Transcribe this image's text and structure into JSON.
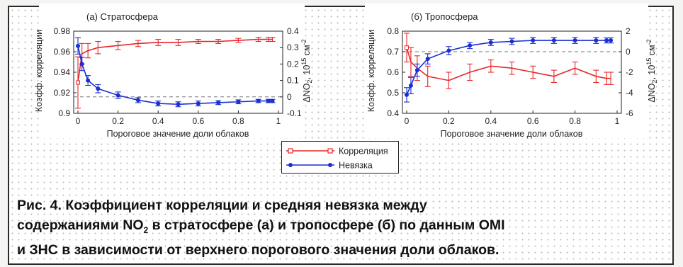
{
  "chart_data": [
    {
      "id": "a",
      "type": "line",
      "title": "(а) Стратосфера",
      "xlabel": "Пороговое значение доли облаков",
      "ylabel_left": "Коэфф. корреляции",
      "ylabel_right": "ΔNO",
      "ylabel_right_sub": "2",
      "ylabel_right_unit": ", 10",
      "ylabel_right_exp": "15",
      "ylabel_right_tail": " см",
      "ylabel_right_tail_exp": "-2",
      "xlim": [
        0,
        1
      ],
      "ylim_left": [
        0.9,
        0.98
      ],
      "ylim_right": [
        -0.1,
        0.4
      ],
      "x_ticks": [
        "0",
        "0.2",
        "0.4",
        "0.6",
        "0.8",
        "1"
      ],
      "y_left_ticks": [
        "0.9",
        "0.92",
        "0.94",
        "0.96",
        "0.98"
      ],
      "y_right_ticks": [
        "-0.1",
        "0",
        "0.1",
        "0.2",
        "0.3",
        "0.4"
      ],
      "reference_line_right": 0,
      "series": [
        {
          "name": "Корреляция",
          "axis": "left",
          "color": "#e8262b",
          "marker": "square-open",
          "x": [
            0,
            0.02,
            0.05,
            0.1,
            0.2,
            0.3,
            0.4,
            0.5,
            0.6,
            0.7,
            0.8,
            0.9,
            0.95,
            0.97
          ],
          "y": [
            0.93,
            0.958,
            0.961,
            0.964,
            0.966,
            0.968,
            0.969,
            0.969,
            0.97,
            0.97,
            0.971,
            0.972,
            0.972,
            0.972
          ],
          "err": [
            0.025,
            0.01,
            0.007,
            0.006,
            0.004,
            0.003,
            0.003,
            0.003,
            0.002,
            0.002,
            0.002,
            0.002,
            0.002,
            0.002
          ]
        },
        {
          "name": "Невязка",
          "axis": "right",
          "color": "#1b2fd0",
          "marker": "circle-filled",
          "x": [
            0,
            0.02,
            0.05,
            0.1,
            0.2,
            0.3,
            0.4,
            0.5,
            0.6,
            0.7,
            0.8,
            0.9,
            0.95,
            0.97
          ],
          "y": [
            0.31,
            0.2,
            0.1,
            0.05,
            0.01,
            -0.02,
            -0.04,
            -0.045,
            -0.04,
            -0.035,
            -0.03,
            -0.025,
            -0.025,
            -0.025
          ],
          "err": [
            0.05,
            0.04,
            0.03,
            0.025,
            0.02,
            0.015,
            0.015,
            0.015,
            0.015,
            0.012,
            0.012,
            0.01,
            0.01,
            0.01
          ]
        }
      ]
    },
    {
      "id": "b",
      "type": "line",
      "title": "(б) Тропосфера",
      "xlabel": "Пороговое значение доли облаков",
      "ylabel_left": "Коэфф. корреляции",
      "ylabel_right": "ΔNO",
      "ylabel_right_sub": "2",
      "ylabel_right_unit": ", 10",
      "ylabel_right_exp": "15",
      "ylabel_right_tail": " см",
      "ylabel_right_tail_exp": "-2",
      "xlim": [
        0,
        1
      ],
      "ylim_left": [
        0.4,
        0.8
      ],
      "ylim_right": [
        -6,
        2
      ],
      "x_ticks": [
        "0",
        "0.2",
        "0.4",
        "0.6",
        "0.8",
        "1"
      ],
      "y_left_ticks": [
        "0.4",
        "0.5",
        "0.6",
        "0.7",
        "0.8"
      ],
      "y_right_ticks": [
        "-6",
        "-4",
        "-2",
        "0",
        "2"
      ],
      "reference_line_right": 0,
      "series": [
        {
          "name": "Корреляция",
          "axis": "left",
          "color": "#e8262b",
          "marker": "square-open",
          "x": [
            0,
            0.02,
            0.05,
            0.1,
            0.2,
            0.3,
            0.4,
            0.5,
            0.6,
            0.7,
            0.8,
            0.9,
            0.95,
            0.97
          ],
          "y": [
            0.72,
            0.65,
            0.62,
            0.58,
            0.56,
            0.6,
            0.63,
            0.62,
            0.6,
            0.58,
            0.62,
            0.58,
            0.57,
            0.57
          ],
          "err": [
            0.07,
            0.07,
            0.06,
            0.05,
            0.04,
            0.04,
            0.03,
            0.03,
            0.03,
            0.03,
            0.03,
            0.03,
            0.03,
            0.03
          ]
        },
        {
          "name": "Невязка",
          "axis": "right",
          "color": "#1b2fd0",
          "marker": "circle-filled",
          "x": [
            0,
            0.02,
            0.05,
            0.1,
            0.2,
            0.3,
            0.4,
            0.5,
            0.6,
            0.7,
            0.8,
            0.9,
            0.95,
            0.97
          ],
          "y": [
            -4.2,
            -3.3,
            -1.8,
            -0.7,
            0.1,
            0.6,
            0.9,
            1.0,
            1.1,
            1.1,
            1.1,
            1.1,
            1.1,
            1.1
          ],
          "err": [
            0.7,
            0.8,
            0.6,
            0.5,
            0.4,
            0.3,
            0.3,
            0.3,
            0.3,
            0.3,
            0.3,
            0.3,
            0.25,
            0.25
          ]
        }
      ]
    }
  ],
  "legend": {
    "placement": "bottom-center",
    "items": [
      {
        "label": "Корреляция",
        "color": "#e8262b"
      },
      {
        "label": "Невязка",
        "color": "#1b2fd0"
      }
    ]
  },
  "caption": {
    "line1": "Рис. 4. Коэффициент корреляции и средняя невязка между",
    "line2_a": "содержаниями NO",
    "line2_sub": "2",
    "line2_b": " в стратосфере (а) и тропосфере (б) по данным OMI",
    "line3": "и ЗНС в зависимости от верхнего порогового значения доли облаков."
  }
}
